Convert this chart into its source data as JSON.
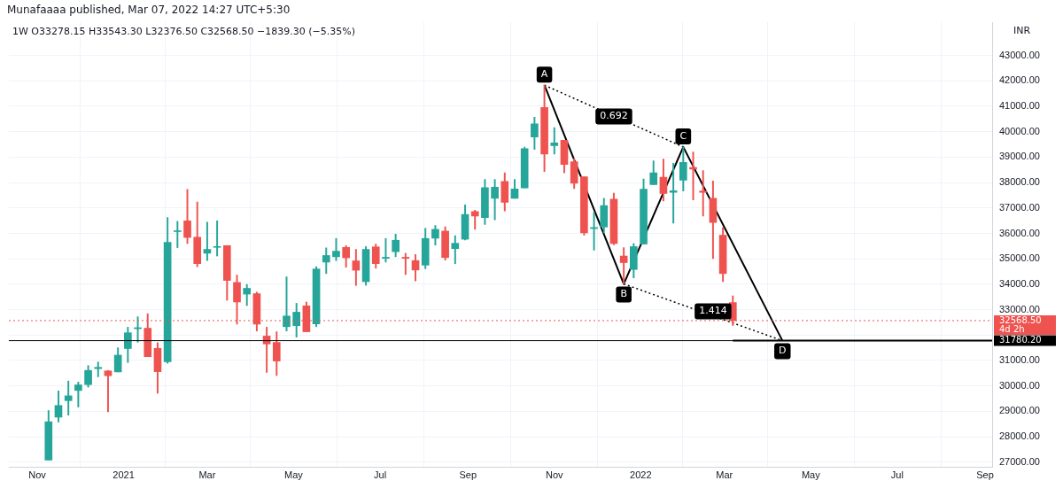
{
  "chart_data": {
    "type": "candlestick",
    "title": "Munafaaaa published, Mar 07, 2022 14:27 UTC+5:30",
    "subtitle": "1W O33278.15 H33543.30 L32376.50 C32568.50 −1839.30 (−5.35%)",
    "x": [
      "2020-11-09",
      "2020-11-16",
      "2020-11-23",
      "2020-11-30",
      "2020-12-07",
      "2020-12-14",
      "2020-12-21",
      "2020-12-28",
      "2021-01-04",
      "2021-01-11",
      "2021-01-18",
      "2021-01-25",
      "2021-02-01",
      "2021-02-08",
      "2021-02-15",
      "2021-02-22",
      "2021-03-01",
      "2021-03-08",
      "2021-03-15",
      "2021-03-22",
      "2021-03-29",
      "2021-04-05",
      "2021-04-12",
      "2021-04-19",
      "2021-04-26",
      "2021-05-03",
      "2021-05-10",
      "2021-05-17",
      "2021-05-24",
      "2021-05-31",
      "2021-06-07",
      "2021-06-14",
      "2021-06-21",
      "2021-06-28",
      "2021-07-05",
      "2021-07-12",
      "2021-07-19",
      "2021-07-26",
      "2021-08-02",
      "2021-08-09",
      "2021-08-16",
      "2021-08-23",
      "2021-08-30",
      "2021-09-06",
      "2021-09-13",
      "2021-09-20",
      "2021-09-27",
      "2021-10-04",
      "2021-10-11",
      "2021-10-18",
      "2021-10-25",
      "2021-11-01",
      "2021-11-08",
      "2021-11-15",
      "2021-11-22",
      "2021-11-29",
      "2021-12-06",
      "2021-12-13",
      "2021-12-20",
      "2021-12-27",
      "2022-01-03",
      "2022-01-10",
      "2022-01-17",
      "2022-01-24",
      "2022-01-31",
      "2022-02-07",
      "2022-02-14",
      "2022-02-21",
      "2022-02-28",
      "2022-03-07"
    ],
    "ohlc": [
      [
        27080,
        29030,
        27080,
        28590
      ],
      [
        28770,
        29800,
        28580,
        29230
      ],
      [
        29420,
        30190,
        28850,
        29610
      ],
      [
        29820,
        30150,
        29170,
        30040
      ],
      [
        30050,
        30800,
        29950,
        30610
      ],
      [
        30680,
        30940,
        30360,
        30730
      ],
      [
        30590,
        30610,
        28980,
        30400
      ],
      [
        30550,
        31500,
        30550,
        31210
      ],
      [
        31470,
        32310,
        30920,
        32090
      ],
      [
        32250,
        32720,
        31720,
        32290
      ],
      [
        32270,
        32840,
        31150,
        31150
      ],
      [
        31480,
        31700,
        29710,
        30560
      ],
      [
        30950,
        36620,
        30890,
        35650
      ],
      [
        36070,
        36480,
        35440,
        36100
      ],
      [
        36490,
        37730,
        35600,
        35840
      ],
      [
        35850,
        37230,
        34690,
        34810
      ],
      [
        35220,
        36440,
        34930,
        35370
      ],
      [
        35450,
        36490,
        35110,
        35480
      ],
      [
        35520,
        35520,
        33370,
        34150
      ],
      [
        34070,
        34360,
        32430,
        33300
      ],
      [
        33610,
        33990,
        33160,
        33840
      ],
      [
        33630,
        33690,
        32160,
        32430
      ],
      [
        31960,
        32310,
        30530,
        31650
      ],
      [
        31710,
        32130,
        30410,
        30980
      ],
      [
        32330,
        34290,
        32160,
        32750
      ],
      [
        32370,
        33250,
        31920,
        32900
      ],
      [
        33150,
        33300,
        32130,
        32130
      ],
      [
        32440,
        34690,
        32330,
        34600
      ],
      [
        34870,
        35430,
        34420,
        35130
      ],
      [
        35080,
        35800,
        34930,
        35300
      ],
      [
        35450,
        35520,
        34670,
        35040
      ],
      [
        34920,
        35370,
        33950,
        34550
      ],
      [
        34100,
        35480,
        33960,
        35370
      ],
      [
        35470,
        35580,
        34630,
        34810
      ],
      [
        35020,
        35800,
        34870,
        35060
      ],
      [
        35280,
        35970,
        35080,
        35730
      ],
      [
        35060,
        35220,
        34380,
        35020
      ],
      [
        34930,
        35170,
        34130,
        34560
      ],
      [
        34750,
        36200,
        34610,
        35800
      ],
      [
        35810,
        36310,
        35540,
        36160
      ],
      [
        36090,
        36260,
        34950,
        35050
      ],
      [
        35400,
        35910,
        34810,
        35610
      ],
      [
        35770,
        37120,
        35740,
        36750
      ],
      [
        36860,
        36910,
        36160,
        36680
      ],
      [
        36620,
        38120,
        36350,
        37800
      ],
      [
        37380,
        38120,
        36530,
        37820
      ],
      [
        38040,
        38380,
        36880,
        37220
      ],
      [
        37380,
        38120,
        37380,
        37750
      ],
      [
        37790,
        39390,
        37790,
        39330
      ],
      [
        39790,
        40570,
        39300,
        40310
      ],
      [
        40950,
        41830,
        38430,
        39120
      ],
      [
        39450,
        40160,
        39120,
        39560
      ],
      [
        39660,
        39660,
        38380,
        38710
      ],
      [
        38820,
        38940,
        37760,
        37970
      ],
      [
        38230,
        38230,
        35930,
        36020
      ],
      [
        36190,
        36820,
        35340,
        36230
      ],
      [
        36250,
        37380,
        36020,
        37090
      ],
      [
        37350,
        37580,
        35550,
        35600
      ],
      [
        35110,
        35440,
        34010,
        34850
      ],
      [
        34580,
        35600,
        34250,
        35480
      ],
      [
        35580,
        38140,
        35580,
        37740
      ],
      [
        37920,
        38850,
        37920,
        38380
      ],
      [
        38210,
        38920,
        37270,
        37570
      ],
      [
        37610,
        38760,
        36400,
        37680
      ],
      [
        38090,
        39400,
        37670,
        38790
      ],
      [
        38590,
        39200,
        37320,
        38530
      ],
      [
        37670,
        38470,
        36680,
        37610
      ],
      [
        37380,
        38060,
        35010,
        36430
      ],
      [
        35930,
        36230,
        34100,
        34420
      ],
      [
        33278.15,
        33543.3,
        32376.5,
        32568.5
      ]
    ],
    "colors": [
      "#26a69a",
      "#26a69a",
      "#26a69a",
      "#26a69a",
      "#26a69a",
      "#26a69a",
      "#ef5350",
      "#26a69a",
      "#26a69a",
      "#26a69a",
      "#ef5350",
      "#ef5350",
      "#26a69a",
      "#26a69a",
      "#ef5350",
      "#ef5350",
      "#26a69a",
      "#26a69a",
      "#ef5350",
      "#ef5350",
      "#26a69a",
      "#ef5350",
      "#ef5350",
      "#ef5350",
      "#26a69a",
      "#26a69a",
      "#ef5350",
      "#26a69a",
      "#26a69a",
      "#26a69a",
      "#ef5350",
      "#ef5350",
      "#26a69a",
      "#ef5350",
      "#26a69a",
      "#26a69a",
      "#ef5350",
      "#ef5350",
      "#26a69a",
      "#26a69a",
      "#ef5350",
      "#26a69a",
      "#26a69a",
      "#ef5350",
      "#26a69a",
      "#26a69a",
      "#ef5350",
      "#26a69a",
      "#26a69a",
      "#26a69a",
      "#ef5350",
      "#26a69a",
      "#ef5350",
      "#ef5350",
      "#ef5350",
      "#26a69a",
      "#26a69a",
      "#ef5350",
      "#ef5350",
      "#26a69a",
      "#26a69a",
      "#26a69a",
      "#ef5350",
      "#26a69a",
      "#26a69a",
      "#ef5350",
      "#ef5350",
      "#ef5350",
      "#ef5350",
      "#ef5350"
    ],
    "series": [
      {
        "type": "line",
        "x": [
          "2021-10-25",
          "2021-12-20",
          "2022-01-31",
          "2022-04-11"
        ],
        "values": [
          41830,
          34010,
          39400,
          31780.2
        ],
        "color": "#000000",
        "line_style": "solid"
      },
      {
        "type": "line",
        "x": [
          "2021-10-25",
          "2022-01-31"
        ],
        "values": [
          41830,
          39400
        ],
        "color": "#000000",
        "line_style": "dotted"
      },
      {
        "type": "line",
        "x": [
          "2021-12-20",
          "2022-04-11"
        ],
        "values": [
          34010,
          31780.2
        ],
        "color": "#000000",
        "line_style": "dotted"
      },
      {
        "type": "line",
        "x": [
          "2022-03-07",
          "2022-09-06"
        ],
        "values": [
          31780.2,
          31780.2
        ],
        "color": "#000000",
        "line_style": "solid"
      }
    ],
    "ref_lines": [
      {
        "axis": "y",
        "value": 32568.5,
        "label": "32568.50\n4d 2h",
        "color": "#ef5350",
        "line_style": "dotted"
      },
      {
        "axis": "y",
        "value": 31780.2,
        "label": "31780.20",
        "color": "#000000"
      }
    ],
    "annotations": [
      {
        "text": "A",
        "x": "2021-10-25",
        "y": 41830
      },
      {
        "text": "B",
        "x": "2021-12-20",
        "y": 34010
      },
      {
        "text": "C",
        "x": "2022-01-31",
        "y": 39400
      },
      {
        "text": "D",
        "x": "2022-04-11",
        "y": 31780.2
      },
      {
        "text": "0.692",
        "x": "2021-12-13",
        "y": 40600
      },
      {
        "text": "1.414",
        "x": "2022-02-21",
        "y": 32930
      },
      "INR"
    ],
    "xlim": [
      "2020-10-12",
      "2022-09-06"
    ],
    "xticks": [
      {
        "value": "2020-11-01",
        "label": "Nov"
      },
      {
        "value": "2021-01-01",
        "label": "2021"
      },
      {
        "value": "2021-03-01",
        "label": "Mar"
      },
      {
        "value": "2021-05-01",
        "label": "May"
      },
      {
        "value": "2021-07-01",
        "label": "Jul"
      },
      {
        "value": "2021-09-01",
        "label": "Sep"
      },
      {
        "value": "2021-11-01",
        "label": "Nov"
      },
      {
        "value": "2022-01-01",
        "label": "2022"
      },
      {
        "value": "2022-03-01",
        "label": "Mar"
      },
      {
        "value": "2022-05-01",
        "label": "May"
      },
      {
        "value": "2022-07-01",
        "label": "Jul"
      },
      {
        "value": "2022-09-01",
        "label": "Sep"
      }
    ],
    "ylim": [
      26790,
      44310
    ],
    "yticks": [
      {
        "value": 27000,
        "label": "27000.00"
      },
      {
        "value": 28000,
        "label": "28000.00"
      },
      {
        "value": 29000,
        "label": "29000.00"
      },
      {
        "value": 30000,
        "label": "30000.00"
      },
      {
        "value": 31000,
        "label": "31000.00"
      },
      {
        "value": 32000,
        "label": null
      },
      {
        "value": 33000,
        "label": "33000.00"
      },
      {
        "value": 34000,
        "label": "34000.00"
      },
      {
        "value": 35000,
        "label": "35000.00"
      },
      {
        "value": 36000,
        "label": "36000.00"
      },
      {
        "value": 37000,
        "label": "37000.00"
      },
      {
        "value": 38000,
        "label": "38000.00"
      },
      {
        "value": 39000,
        "label": "39000.00"
      },
      {
        "value": 40000,
        "label": "40000.00"
      },
      {
        "value": 41000,
        "label": "41000.00"
      },
      {
        "value": 42000,
        "label": "42000.00"
      },
      {
        "value": 43000,
        "label": "43000.00"
      }
    ],
    "grid": true,
    "legend": false
  }
}
